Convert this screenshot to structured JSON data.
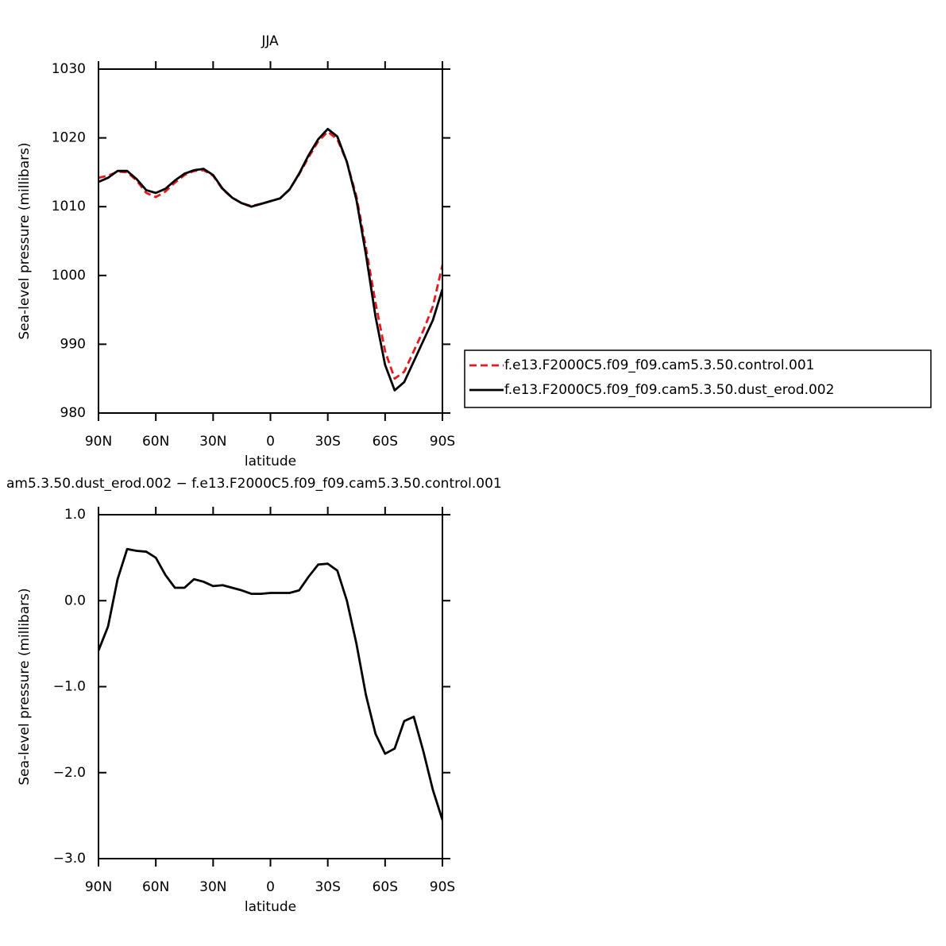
{
  "chart_data": [
    {
      "type": "line",
      "title": "JJA",
      "xlabel": "latitude",
      "ylabel": "Sea-level pressure (millibars)",
      "x": [
        90,
        85,
        80,
        75,
        70,
        65,
        60,
        55,
        50,
        45,
        40,
        35,
        30,
        25,
        20,
        15,
        10,
        5,
        0,
        -5,
        -10,
        -15,
        -20,
        -25,
        -30,
        -35,
        -40,
        -45,
        -50,
        -55,
        -60,
        -65,
        -70,
        -75,
        -80,
        -85,
        -90
      ],
      "series": [
        {
          "name": "f.e13.F2000C5.f09_f09.cam5.3.50.control.001",
          "color": "#e41a1c",
          "style": "dashed",
          "values": [
            1014.2,
            1014.5,
            1015.1,
            1015.0,
            1013.8,
            1012.0,
            1011.4,
            1012.2,
            1013.5,
            1014.6,
            1015.2,
            1015.3,
            1014.5,
            1012.5,
            1011.3,
            1010.5,
            1010.1,
            1010.4,
            1010.8,
            1011.2,
            1012.5,
            1014.7,
            1017.2,
            1019.5,
            1020.9,
            1019.8,
            1016.5,
            1011.5,
            1004,
            996,
            989,
            985,
            986,
            989,
            992,
            995.5,
            1001.5
          ]
        },
        {
          "name": "f.e13.F2000C5.f09_f09.cam5.3.50.dust_erod.002",
          "color": "#000000",
          "style": "solid",
          "values": [
            1013.6,
            1014.2,
            1015.2,
            1015.2,
            1014.0,
            1012.4,
            1012.0,
            1012.6,
            1013.8,
            1014.8,
            1015.3,
            1015.5,
            1014.6,
            1012.6,
            1011.3,
            1010.5,
            1010.0,
            1010.4,
            1010.8,
            1011.2,
            1012.5,
            1014.8,
            1017.5,
            1019.8,
            1021.3,
            1020.2,
            1016.5,
            1011,
            1003,
            994,
            987,
            983.3,
            984.5,
            987.5,
            990.5,
            993.5,
            998
          ]
        }
      ],
      "xlim": [
        90,
        -90
      ],
      "xticks": [
        {
          "value": 90,
          "label": "90N"
        },
        {
          "value": 60,
          "label": "60N"
        },
        {
          "value": 30,
          "label": "30N"
        },
        0,
        {
          "value": -30,
          "label": "30S"
        },
        {
          "value": -60,
          "label": "60S"
        },
        {
          "value": -90,
          "label": "90S"
        }
      ],
      "ylim": [
        980,
        1030
      ],
      "yticks": [
        980,
        990,
        1000,
        1010,
        1020,
        1030
      ],
      "legend": "right"
    },
    {
      "type": "line",
      "title": "am5.3.50.dust_erod.002 − f.e13.F2000C5.f09_f09.cam5.3.50.control.001",
      "xlabel": "latitude",
      "ylabel": "Sea-level pressure (millibars)",
      "x": [
        90,
        85,
        80,
        75,
        70,
        65,
        60,
        55,
        50,
        45,
        40,
        35,
        30,
        25,
        20,
        15,
        10,
        5,
        0,
        -5,
        -10,
        -15,
        -20,
        -25,
        -30,
        -35,
        -40,
        -45,
        -50,
        -55,
        -60,
        -65,
        -70,
        -75,
        -80,
        -85,
        -90
      ],
      "series": [
        {
          "color": "#000000",
          "style": "solid",
          "values": [
            -0.58,
            -0.3,
            0.25,
            0.6,
            0.58,
            0.57,
            0.5,
            0.3,
            0.15,
            0.15,
            0.25,
            0.22,
            0.17,
            0.18,
            0.15,
            0.12,
            0.08,
            0.08,
            0.09,
            0.09,
            0.09,
            0.12,
            0.28,
            0.42,
            0.43,
            0.35,
            0.0,
            -0.5,
            -1.1,
            -1.55,
            -1.78,
            -1.72,
            -1.4,
            -1.35,
            -1.75,
            -2.2,
            -2.55
          ]
        }
      ],
      "xlim": [
        90,
        -90
      ],
      "xticks": [
        {
          "value": 90,
          "label": "90N"
        },
        {
          "value": 60,
          "label": "60N"
        },
        {
          "value": 30,
          "label": "30N"
        },
        0,
        {
          "value": -30,
          "label": "30S"
        },
        {
          "value": -60,
          "label": "60S"
        },
        {
          "value": -90,
          "label": "90S"
        }
      ],
      "ylim": [
        -3,
        1
      ],
      "yticks": [
        {
          "value": -3,
          "label": "−3.0"
        },
        {
          "value": -2,
          "label": "−2.0"
        },
        {
          "value": -1,
          "label": "−1.0"
        },
        {
          "value": 0,
          "label": "0.0"
        },
        {
          "value": 1,
          "label": "1.0"
        }
      ]
    }
  ]
}
